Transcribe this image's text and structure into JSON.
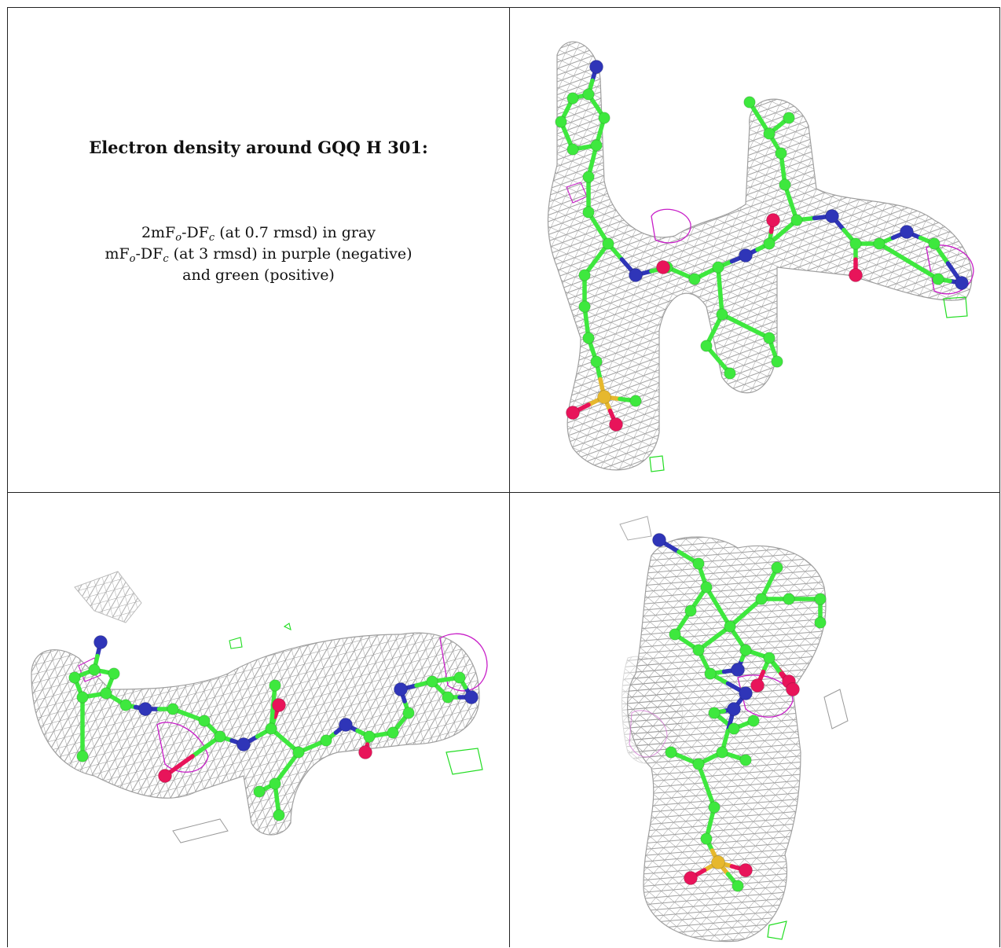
{
  "caption": {
    "title": "Electron density around GQQ H 301:",
    "line1": {
      "a": "2mF",
      "a_sub": "o",
      "b": "-DF",
      "b_sub": "c",
      "c": " (at 0.7 rmsd) in gray"
    },
    "line2": {
      "a": "mF",
      "a_sub": "o",
      "b": "-DF",
      "b_sub": "c",
      "c": " (at 3 rmsd) in purple (negative)"
    },
    "line3": "and green (positive)"
  },
  "colors": {
    "mesh_gray": "#8e8e8e",
    "carbon_green": "#3ee83e",
    "nitrogen_blue": "#2f35b8",
    "oxygen_red": "#e8145a",
    "sulfur_yellow": "#e6b82e",
    "negative_purple": "#c81ec8",
    "positive_green": "#22dd22",
    "border": "#222222"
  },
  "views": [
    {
      "label": "view-top-right"
    },
    {
      "label": "view-bottom-left"
    },
    {
      "label": "view-bottom-right"
    }
  ]
}
